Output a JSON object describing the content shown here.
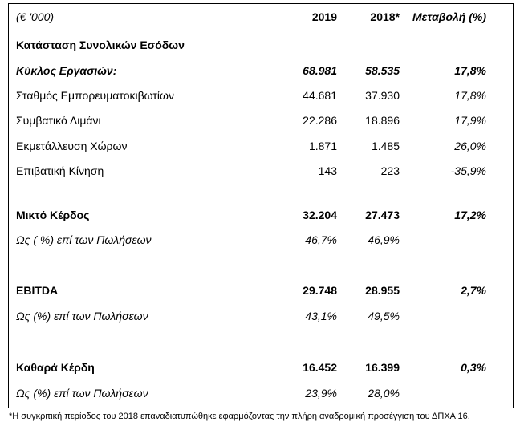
{
  "header": {
    "unit": "(€ '000)",
    "col_2019": "2019",
    "col_2018": "2018*",
    "col_change": "Μεταβολή (%)"
  },
  "section_title": "Κατάσταση Συνολικών Εσόδων",
  "rows": [
    {
      "label": "Κύκλος Εργασιών:",
      "v2019": "68.981",
      "v2018": "58.535",
      "change": "17,8%"
    },
    {
      "label": "Σταθμός Εμπορευματοκιβωτίων",
      "v2019": "44.681",
      "v2018": "37.930",
      "change": "17,8%"
    },
    {
      "label": "Συμβατικό Λιμάνι",
      "v2019": "22.286",
      "v2018": "18.896",
      "change": "17,9%"
    },
    {
      "label": "Εκμετάλλευση Χώρων",
      "v2019": "1.871",
      "v2018": "1.485",
      "change": "26,0%"
    },
    {
      "label": "Επιβατική Κίνηση",
      "v2019": "143",
      "v2018": "223",
      "change": "-35,9%"
    },
    {
      "label": "Μικτό Κέρδος",
      "v2019": "32.204",
      "v2018": "27.473",
      "change": "17,2%"
    },
    {
      "label": "Ως ( %) επί των Πωλήσεων",
      "v2019": "46,7%",
      "v2018": "46,9%",
      "change": ""
    },
    {
      "label": "EBITDA",
      "v2019": "29.748",
      "v2018": "28.955",
      "change": "2,7%"
    },
    {
      "label": "Ως (%) επί των Πωλήσεων",
      "v2019": "43,1%",
      "v2018": "49,5%",
      "change": ""
    },
    {
      "label": "Καθαρά Κέρδη",
      "v2019": "16.452",
      "v2018": "16.399",
      "change": "0,3%"
    },
    {
      "label": "Ως (%) επί των Πωλήσεων",
      "v2019": "23,9%",
      "v2018": "28,0%",
      "change": ""
    }
  ],
  "footnote": "*Η συγκριτική περίοδος του 2018 επαναδιατυπώθηκε εφαρμόζοντας την πλήρη αναδρομική προσέγγιση του ΔΠΧΑ 16."
}
